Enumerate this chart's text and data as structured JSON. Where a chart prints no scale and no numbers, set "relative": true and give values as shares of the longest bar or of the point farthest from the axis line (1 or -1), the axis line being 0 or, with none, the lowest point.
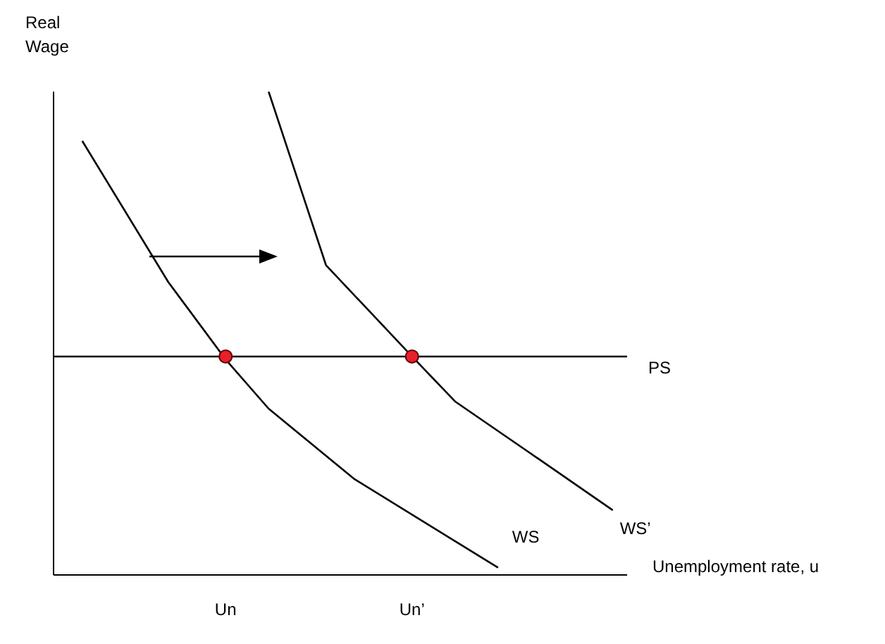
{
  "chart_data": {
    "type": "line",
    "relative": true,
    "ylabel": "Real\nWage",
    "xlabel": "Unemployment rate, u",
    "marker": "none",
    "categories": [
      null,
      null,
      null,
      null,
      null,
      null,
      null,
      null,
      null,
      null,
      null,
      null,
      "Un",
      null,
      null,
      null,
      null,
      null,
      null,
      null,
      null,
      null,
      null,
      null,
      null,
      "Un’",
      null,
      null,
      null,
      null,
      null,
      null,
      null,
      null,
      null,
      null,
      null,
      null,
      null,
      null,
      null
    ],
    "series": [
      {
        "name": "WS",
        "color": "#000000",
        "values": [
          null,
          null,
          0.898,
          null,
          null,
          null,
          null,
          null,
          0.606,
          null,
          null,
          null,
          0.446,
          null,
          null,
          0.344,
          null,
          null,
          null,
          null,
          null,
          0.198,
          null,
          null,
          null,
          null,
          null,
          null,
          null,
          null,
          null,
          0.015,
          null,
          null,
          null,
          null,
          null,
          null,
          null,
          null,
          null
        ]
      },
      {
        "name": "WS’",
        "color": "#000000",
        "values": [
          null,
          null,
          null,
          null,
          null,
          null,
          null,
          null,
          null,
          null,
          null,
          null,
          null,
          null,
          null,
          1.0,
          null,
          null,
          null,
          0.641,
          null,
          null,
          null,
          null,
          null,
          0.452,
          null,
          null,
          0.359,
          null,
          null,
          null,
          null,
          0.257,
          null,
          null,
          null,
          null,
          null,
          0.134,
          null
        ]
      },
      {
        "name": "PS",
        "color": "#000000",
        "values": [
          0.452,
          null,
          null,
          null,
          null,
          null,
          null,
          null,
          null,
          null,
          null,
          null,
          null,
          null,
          null,
          null,
          null,
          null,
          null,
          null,
          null,
          null,
          null,
          null,
          null,
          null,
          null,
          null,
          null,
          null,
          null,
          null,
          null,
          null,
          null,
          null,
          null,
          null,
          null,
          null,
          0.452
        ]
      },
      {
        "type": "scatter",
        "marker": "circle",
        "color": "#e8202a",
        "values": [
          null,
          null,
          null,
          null,
          null,
          null,
          null,
          null,
          null,
          null,
          null,
          null,
          0.452,
          null,
          null,
          null,
          null,
          null,
          null,
          null,
          null,
          null,
          null,
          null,
          null,
          0.452,
          null,
          null,
          null,
          null,
          null,
          null,
          null,
          null,
          null,
          null,
          null,
          null,
          null,
          null,
          null
        ]
      }
    ]
  }
}
